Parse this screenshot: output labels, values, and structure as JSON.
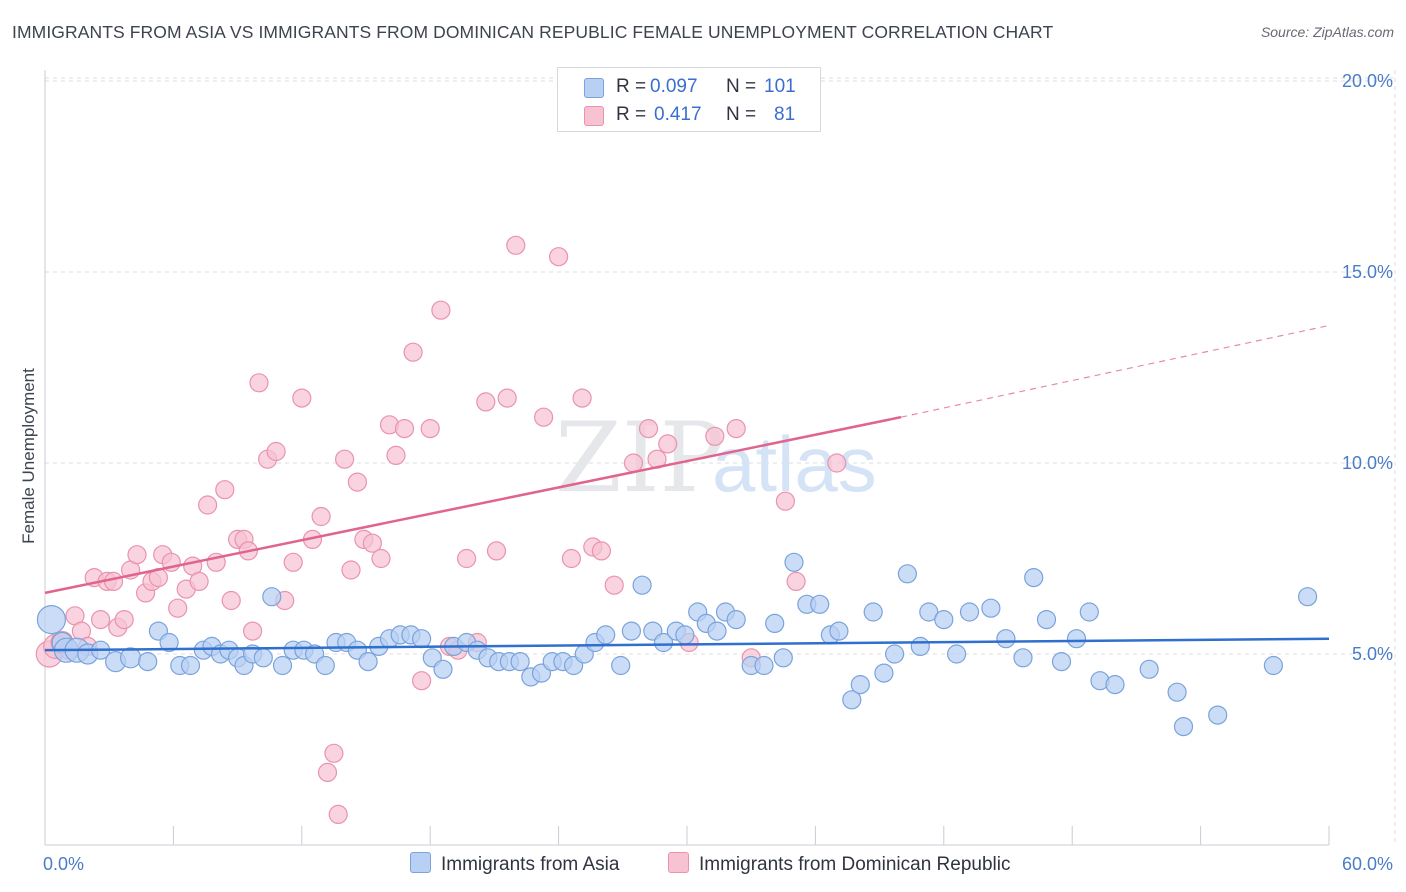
{
  "title": "IMMIGRANTS FROM ASIA VS IMMIGRANTS FROM DOMINICAN REPUBLIC FEMALE UNEMPLOYMENT CORRELATION CHART",
  "source": "Source: ZipAtlas.com",
  "watermark": {
    "zip": "ZIP",
    "atlas": "atlas"
  },
  "legend": {
    "r_label": "R =",
    "n_label": "N =",
    "rows": [
      {
        "r": "0.097",
        "n": "101"
      },
      {
        "r": "0.417",
        "n": "81"
      }
    ]
  },
  "colors": {
    "asia_fill": "#b7d0f3",
    "asia_stroke": "#7aa3dc",
    "asia_line": "#2f6fce",
    "dr_fill": "#f7c2d2",
    "dr_stroke": "#ea93ae",
    "dr_line": "#e0648e",
    "grid": "#d9dce2",
    "tick_label": "#4a7cc7"
  },
  "chart_data": {
    "type": "scatter",
    "title": "IMMIGRANTS FROM ASIA VS IMMIGRANTS FROM DOMINICAN REPUBLIC FEMALE UNEMPLOYMENT CORRELATION CHART",
    "xlabel": "",
    "ylabel": "Female Unemployment",
    "xlim": [
      0,
      60
    ],
    "ylim": [
      0,
      20.5
    ],
    "x_tick_labels": [
      "0.0%",
      "60.0%"
    ],
    "y_ticks": [
      5,
      10,
      15,
      20
    ],
    "y_tick_labels": [
      "5.0%",
      "10.0%",
      "15.0%",
      "20.0%"
    ],
    "grid": true,
    "legend_position": "top-center",
    "series": [
      {
        "name": "Immigrants from Asia",
        "color": "#b7d0f3",
        "r": 0.097,
        "n": 101,
        "trend": {
          "x": [
            0,
            60
          ],
          "y": [
            5.1,
            5.4
          ],
          "style": "solid"
        },
        "points": [
          [
            0.3,
            5.9,
            14
          ],
          [
            0.8,
            5.3,
            10
          ],
          [
            1.0,
            5.1,
            12
          ],
          [
            1.5,
            5.1,
            12
          ],
          [
            2.0,
            5.0,
            10
          ],
          [
            2.6,
            5.1,
            9
          ],
          [
            3.3,
            4.8,
            10
          ],
          [
            4.0,
            4.9,
            10
          ],
          [
            4.8,
            4.8,
            9
          ],
          [
            5.3,
            5.6,
            9
          ],
          [
            5.8,
            5.3,
            9
          ],
          [
            6.3,
            4.7,
            9
          ],
          [
            6.8,
            4.7,
            9
          ],
          [
            7.4,
            5.1,
            9
          ],
          [
            7.8,
            5.2,
            9
          ],
          [
            8.2,
            5.0,
            9
          ],
          [
            8.6,
            5.1,
            9
          ],
          [
            9.0,
            4.9,
            9
          ],
          [
            9.3,
            4.7,
            9
          ],
          [
            9.7,
            5.0,
            9
          ],
          [
            10.2,
            4.9,
            9
          ],
          [
            10.6,
            6.5,
            9
          ],
          [
            11.1,
            4.7,
            9
          ],
          [
            11.6,
            5.1,
            9
          ],
          [
            12.1,
            5.1,
            9
          ],
          [
            12.6,
            5.0,
            9
          ],
          [
            13.1,
            4.7,
            9
          ],
          [
            13.6,
            5.3,
            9
          ],
          [
            14.1,
            5.3,
            9
          ],
          [
            14.6,
            5.1,
            9
          ],
          [
            15.1,
            4.8,
            9
          ],
          [
            15.6,
            5.2,
            9
          ],
          [
            16.1,
            5.4,
            9
          ],
          [
            16.6,
            5.5,
            9
          ],
          [
            17.1,
            5.5,
            9
          ],
          [
            17.6,
            5.4,
            9
          ],
          [
            18.1,
            4.9,
            9
          ],
          [
            18.6,
            4.6,
            9
          ],
          [
            19.1,
            5.2,
            9
          ],
          [
            19.7,
            5.3,
            9
          ],
          [
            20.2,
            5.1,
            9
          ],
          [
            20.7,
            4.9,
            9
          ],
          [
            21.2,
            4.8,
            9
          ],
          [
            21.7,
            4.8,
            9
          ],
          [
            22.2,
            4.8,
            9
          ],
          [
            22.7,
            4.4,
            9
          ],
          [
            23.2,
            4.5,
            9
          ],
          [
            23.7,
            4.8,
            9
          ],
          [
            24.2,
            4.8,
            9
          ],
          [
            24.7,
            4.7,
            9
          ],
          [
            25.2,
            5.0,
            9
          ],
          [
            25.7,
            5.3,
            9
          ],
          [
            26.2,
            5.5,
            9
          ],
          [
            26.9,
            4.7,
            9
          ],
          [
            27.4,
            5.6,
            9
          ],
          [
            27.9,
            6.8,
            9
          ],
          [
            28.4,
            5.6,
            9
          ],
          [
            28.9,
            5.3,
            9
          ],
          [
            29.5,
            5.6,
            9
          ],
          [
            29.9,
            5.5,
            9
          ],
          [
            30.5,
            6.1,
            9
          ],
          [
            30.9,
            5.8,
            9
          ],
          [
            31.4,
            5.6,
            9
          ],
          [
            31.8,
            6.1,
            9
          ],
          [
            32.3,
            5.9,
            9
          ],
          [
            33.0,
            4.7,
            9
          ],
          [
            33.6,
            4.7,
            9
          ],
          [
            34.1,
            5.8,
            9
          ],
          [
            34.5,
            4.9,
            9
          ],
          [
            35.0,
            7.4,
            9
          ],
          [
            35.6,
            6.3,
            9
          ],
          [
            36.2,
            6.3,
            9
          ],
          [
            36.7,
            5.5,
            9
          ],
          [
            37.1,
            5.6,
            9
          ],
          [
            37.7,
            3.8,
            9
          ],
          [
            38.1,
            4.2,
            9
          ],
          [
            38.7,
            6.1,
            9
          ],
          [
            39.2,
            4.5,
            9
          ],
          [
            39.7,
            5.0,
            9
          ],
          [
            40.3,
            7.1,
            9
          ],
          [
            40.9,
            5.2,
            9
          ],
          [
            41.3,
            6.1,
            9
          ],
          [
            42.0,
            5.9,
            9
          ],
          [
            42.6,
            5.0,
            9
          ],
          [
            43.2,
            6.1,
            9
          ],
          [
            44.2,
            6.2,
            9
          ],
          [
            44.9,
            5.4,
            9
          ],
          [
            45.7,
            4.9,
            9
          ],
          [
            46.2,
            7.0,
            9
          ],
          [
            46.8,
            5.9,
            9
          ],
          [
            47.5,
            4.8,
            9
          ],
          [
            48.2,
            5.4,
            9
          ],
          [
            48.8,
            6.1,
            9
          ],
          [
            49.3,
            4.3,
            9
          ],
          [
            50.0,
            4.2,
            9
          ],
          [
            51.6,
            4.6,
            9
          ],
          [
            52.9,
            4.0,
            9
          ],
          [
            53.2,
            3.1,
            9
          ],
          [
            54.8,
            3.4,
            9
          ],
          [
            57.4,
            4.7,
            9
          ],
          [
            59.0,
            6.5,
            9
          ]
        ]
      },
      {
        "name": "Immigrants from Dominican Republic",
        "color": "#f7c2d2",
        "r": 0.417,
        "n": 81,
        "trend": {
          "x": [
            0,
            40
          ],
          "y": [
            6.6,
            11.2
          ],
          "style": "solid",
          "extension": {
            "x": [
              40,
              60
            ],
            "y": [
              11.2,
              13.6
            ],
            "style": "dashed"
          }
        },
        "points": [
          [
            0.2,
            5.0,
            13
          ],
          [
            0.5,
            5.2,
            12
          ],
          [
            0.8,
            5.3,
            11
          ],
          [
            1.1,
            5.1,
            9
          ],
          [
            1.4,
            6.0,
            9
          ],
          [
            1.7,
            5.6,
            9
          ],
          [
            2.0,
            5.2,
            9
          ],
          [
            2.3,
            7.0,
            9
          ],
          [
            2.6,
            5.9,
            9
          ],
          [
            2.9,
            6.9,
            9
          ],
          [
            3.2,
            6.9,
            9
          ],
          [
            3.4,
            5.7,
            9
          ],
          [
            3.7,
            5.9,
            9
          ],
          [
            4.0,
            7.2,
            9
          ],
          [
            4.3,
            7.6,
            9
          ],
          [
            4.7,
            6.6,
            9
          ],
          [
            5.0,
            6.9,
            9
          ],
          [
            5.3,
            7.0,
            9
          ],
          [
            5.5,
            7.6,
            9
          ],
          [
            5.9,
            7.4,
            9
          ],
          [
            6.2,
            6.2,
            9
          ],
          [
            6.6,
            6.7,
            9
          ],
          [
            6.9,
            7.3,
            9
          ],
          [
            7.2,
            6.9,
            9
          ],
          [
            7.6,
            8.9,
            9
          ],
          [
            8.0,
            7.4,
            9
          ],
          [
            8.4,
            9.3,
            9
          ],
          [
            8.7,
            6.4,
            9
          ],
          [
            9.0,
            8.0,
            9
          ],
          [
            9.3,
            8.0,
            9
          ],
          [
            9.5,
            7.7,
            9
          ],
          [
            9.7,
            5.6,
            9
          ],
          [
            10.0,
            12.1,
            9
          ],
          [
            10.4,
            10.1,
            9
          ],
          [
            10.8,
            10.3,
            9
          ],
          [
            11.2,
            6.4,
            9
          ],
          [
            11.6,
            7.4,
            9
          ],
          [
            12.0,
            11.7,
            9
          ],
          [
            12.5,
            8.0,
            9
          ],
          [
            12.9,
            8.6,
            9
          ],
          [
            13.2,
            1.9,
            9
          ],
          [
            13.5,
            2.4,
            9
          ],
          [
            13.7,
            0.8,
            9
          ],
          [
            14.0,
            10.1,
            9
          ],
          [
            14.3,
            7.2,
            9
          ],
          [
            14.6,
            9.5,
            9
          ],
          [
            14.9,
            8.0,
            9
          ],
          [
            15.3,
            7.9,
            9
          ],
          [
            15.7,
            7.5,
            9
          ],
          [
            16.1,
            11.0,
            9
          ],
          [
            16.4,
            10.2,
            9
          ],
          [
            16.8,
            10.9,
            9
          ],
          [
            17.2,
            12.9,
            9
          ],
          [
            17.6,
            4.3,
            9
          ],
          [
            18.0,
            10.9,
            9
          ],
          [
            18.5,
            14.0,
            9
          ],
          [
            18.9,
            5.2,
            9
          ],
          [
            19.3,
            5.1,
            9
          ],
          [
            19.7,
            7.5,
            9
          ],
          [
            20.2,
            5.3,
            9
          ],
          [
            20.6,
            11.6,
            9
          ],
          [
            21.1,
            7.7,
            9
          ],
          [
            21.6,
            11.7,
            9
          ],
          [
            22.0,
            15.7,
            9
          ],
          [
            23.3,
            11.2,
            9
          ],
          [
            24.0,
            15.4,
            9
          ],
          [
            24.6,
            7.5,
            9
          ],
          [
            25.1,
            11.7,
            9
          ],
          [
            25.6,
            7.8,
            9
          ],
          [
            26.0,
            7.7,
            9
          ],
          [
            26.6,
            6.8,
            9
          ],
          [
            27.5,
            10.0,
            9
          ],
          [
            28.2,
            10.9,
            9
          ],
          [
            28.6,
            10.1,
            9
          ],
          [
            29.1,
            10.5,
            9
          ],
          [
            30.1,
            5.3,
            9
          ],
          [
            31.3,
            10.7,
            9
          ],
          [
            32.3,
            10.9,
            9
          ],
          [
            33.0,
            4.9,
            9
          ],
          [
            34.6,
            9.0,
            9
          ],
          [
            35.1,
            6.9,
            9
          ],
          [
            37.0,
            10.0,
            9
          ]
        ]
      }
    ]
  },
  "bottom_legend": [
    "Immigrants from Asia",
    "Immigrants from Dominican Republic"
  ]
}
